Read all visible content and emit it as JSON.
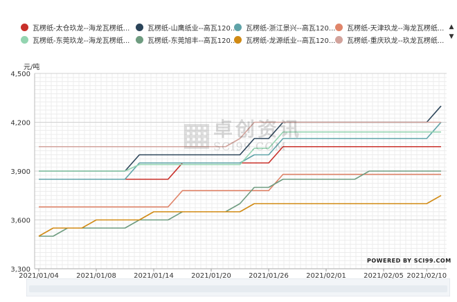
{
  "legend": {
    "row1": [
      {
        "label": "瓦楞纸-太仓玖龙--海龙瓦楞纸...",
        "color": "#c8302a"
      },
      {
        "label": "瓦楞纸-山鹰纸业--高瓦120...",
        "color": "#2b4459"
      },
      {
        "label": "瓦楞纸-浙江景兴--高瓦120...",
        "color": "#5fa3a8"
      },
      {
        "label": "瓦楞纸-天津玖龙--海龙瓦楞纸...",
        "color": "#e0856a"
      }
    ],
    "row2": [
      {
        "label": "瓦楞纸-东莞玖龙--海龙瓦楞纸...",
        "color": "#93d4b0"
      },
      {
        "label": "瓦楞纸-东莞旭丰--高瓦120...",
        "color": "#6f9c80"
      },
      {
        "label": "瓦楞纸-龙源纸业--高瓦120...",
        "color": "#d08a14"
      },
      {
        "label": "瓦楞纸-重庆玖龙--玖龙瓦楞纸...",
        "color": "#d2a39c"
      }
    ]
  },
  "nav_arrows": {
    "up": "▲",
    "down": "▼"
  },
  "unit_label": "元/吨",
  "watermark": {
    "cn": "卓创资讯",
    "url": "SCI99.COM"
  },
  "powered_by": "POWERED BY SCI99.COM",
  "chart_data": {
    "type": "line",
    "step": true,
    "ylim": [
      3300,
      4500
    ],
    "yticks": [
      "3,300",
      "3,600",
      "3,900",
      "4,200",
      "4,500"
    ],
    "ytick_values": [
      3300,
      3600,
      3900,
      4200,
      4500
    ],
    "xticks": [
      "2021/01/04",
      "2021/01/08",
      "2021/01/14",
      "2021/01/20",
      "2021/01/26",
      "2021/02/01",
      "2021/02/05",
      "2021/02/10"
    ],
    "dates": [
      "01/04",
      "01/05",
      "01/06",
      "01/07",
      "01/08",
      "01/11",
      "01/12",
      "01/13",
      "01/14",
      "01/15",
      "01/18",
      "01/19",
      "01/20",
      "01/21",
      "01/22",
      "01/25",
      "01/26",
      "01/27",
      "01/28",
      "01/29",
      "02/01",
      "02/02",
      "02/03",
      "02/04",
      "02/05",
      "02/08",
      "02/09",
      "02/10",
      "02/11"
    ],
    "grid": true,
    "series": [
      {
        "name": "瓦楞纸-太仓玖龙--海龙瓦楞纸...",
        "color": "#c8302a",
        "values": [
          3850,
          3850,
          3850,
          3850,
          3850,
          3850,
          3850,
          3850,
          3850,
          3850,
          3950,
          3950,
          3950,
          3950,
          3950,
          3950,
          3950,
          4050,
          4050,
          4050,
          4050,
          4050,
          4050,
          4050,
          4050,
          4050,
          4050,
          4050,
          4050
        ]
      },
      {
        "name": "瓦楞纸-山鹰纸业--高瓦120...",
        "color": "#2b4459",
        "values": [
          3900,
          3900,
          3900,
          3900,
          3900,
          3900,
          3900,
          4000,
          4000,
          4000,
          4000,
          4000,
          4000,
          4000,
          4000,
          4100,
          4100,
          4200,
          4200,
          4200,
          4200,
          4200,
          4200,
          4200,
          4200,
          4200,
          4200,
          4200,
          4300
        ]
      },
      {
        "name": "瓦楞纸-浙江景兴--高瓦120...",
        "color": "#5fa3a8",
        "values": [
          3850,
          3850,
          3850,
          3850,
          3850,
          3850,
          3850,
          3950,
          3950,
          3950,
          3950,
          3950,
          3950,
          3950,
          3950,
          4000,
          4000,
          4100,
          4100,
          4100,
          4100,
          4100,
          4100,
          4100,
          4100,
          4100,
          4100,
          4100,
          4200
        ]
      },
      {
        "name": "瓦楞纸-天津玖龙--海龙瓦楞纸...",
        "color": "#e0856a",
        "values": [
          3680,
          3680,
          3680,
          3680,
          3680,
          3680,
          3680,
          3680,
          3680,
          3680,
          3780,
          3780,
          3780,
          3780,
          3780,
          3780,
          3780,
          3880,
          3880,
          3880,
          3880,
          3880,
          3880,
          3880,
          3880,
          3880,
          3880,
          3880,
          3880
        ]
      },
      {
        "name": "瓦楞纸-东莞玖龙--海龙瓦楞纸...",
        "color": "#93d4b0",
        "values": [
          3900,
          3900,
          3900,
          3900,
          3900,
          3900,
          3900,
          3940,
          3940,
          3940,
          3940,
          3940,
          3940,
          3940,
          3940,
          4040,
          4040,
          4140,
          4140,
          4140,
          4140,
          4140,
          4140,
          4140,
          4140,
          4140,
          4140,
          4140,
          4140
        ]
      },
      {
        "name": "瓦楞纸-东莞旭丰--高瓦120...",
        "color": "#6f9c80",
        "values": [
          3500,
          3500,
          3550,
          3550,
          3550,
          3550,
          3550,
          3600,
          3600,
          3600,
          3650,
          3650,
          3650,
          3650,
          3700,
          3800,
          3800,
          3850,
          3850,
          3850,
          3850,
          3850,
          3850,
          3900,
          3900,
          3900,
          3900,
          3900,
          3900
        ]
      },
      {
        "name": "瓦楞纸-龙源纸业--高瓦120...",
        "color": "#d08a14",
        "values": [
          3500,
          3550,
          3550,
          3550,
          3600,
          3600,
          3600,
          3600,
          3650,
          3650,
          3650,
          3650,
          3650,
          3650,
          3650,
          3700,
          3700,
          3700,
          3700,
          3700,
          3700,
          3700,
          3700,
          3700,
          3700,
          3700,
          3700,
          3700,
          3750
        ]
      },
      {
        "name": "瓦楞纸-重庆玖龙--玖龙瓦楞纸...",
        "color": "#d2a39c",
        "values": [
          4050,
          4050,
          4050,
          4050,
          4050,
          4050,
          4050,
          4050,
          4050,
          4050,
          4050,
          4050,
          4050,
          4050,
          4100,
          4200,
          4200,
          4200,
          4200,
          4200,
          4200,
          4200,
          4200,
          4200,
          4200,
          4200,
          4200,
          4200,
          4200
        ]
      }
    ]
  }
}
